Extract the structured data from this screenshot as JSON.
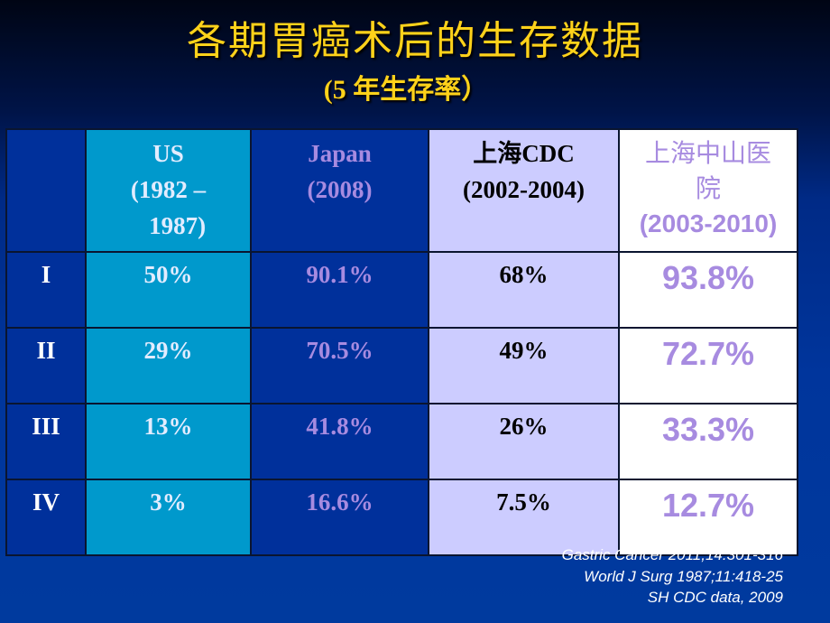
{
  "slide": {
    "title": "各期胃癌术后的生存数据",
    "subtitle": "(5 年生存率）"
  },
  "table": {
    "headers": [
      {
        "lines": [
          ""
        ]
      },
      {
        "lines": [
          "US",
          "(1982 –",
          "   1987)"
        ]
      },
      {
        "lines": [
          "Japan",
          "(2008)"
        ]
      },
      {
        "lines": [
          "上海CDC",
          "(2002-2004)"
        ]
      },
      {
        "lines": [
          "上海中山医",
          "院",
          "(2003-2010)"
        ]
      }
    ],
    "rows": [
      {
        "stage": "I",
        "us": "50%",
        "japan": "90.1%",
        "sh_cdc": "68%",
        "zhongshan": "93.8%"
      },
      {
        "stage": "II",
        "us": "29%",
        "japan": "70.5%",
        "sh_cdc": "49%",
        "zhongshan": "72.7%"
      },
      {
        "stage": "III",
        "us": "13%",
        "japan": "41.8%",
        "sh_cdc": "26%",
        "zhongshan": "33.3%"
      },
      {
        "stage": "IV",
        "us": "3%",
        "japan": "16.6%",
        "sh_cdc": "7.5%",
        "zhongshan": "12.7%"
      }
    ]
  },
  "references": [
    "Gastric Cancer 2011;14:301-316",
    "World J Surg 1987;11:418-25",
    "SH CDC data, 2009"
  ],
  "colors": {
    "title": "#ffd21a",
    "us_column": "#0099cc",
    "japan_column": "#00309b",
    "sh_cdc_column": "#ccccff",
    "zhongshan_column": "#ffffff",
    "accent_purple": "#a78be0"
  }
}
